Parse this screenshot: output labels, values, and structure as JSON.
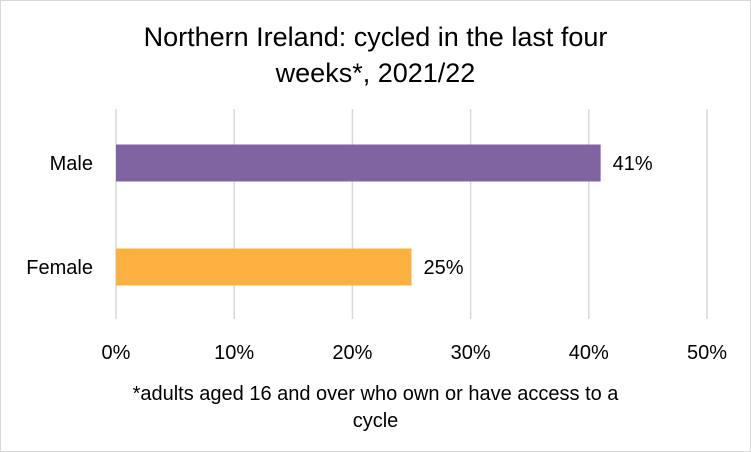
{
  "title_lines": [
    "Northern Ireland: cycled in the last four",
    "weeks*, 2021/22"
  ],
  "footnote_lines": [
    "*adults aged 16 and over who own or have access to a",
    "cycle"
  ],
  "chart_data": {
    "type": "bar",
    "orientation": "horizontal",
    "title": "Northern Ireland: cycled in the last four weeks*, 2021/22",
    "categories": [
      "Male",
      "Female"
    ],
    "values": [
      41,
      25
    ],
    "value_labels": [
      "41%",
      "25%"
    ],
    "colors": [
      "#8064a2",
      "#fbb040"
    ],
    "xlim": [
      0,
      50
    ],
    "x_ticks": [
      0,
      10,
      20,
      30,
      40,
      50
    ],
    "x_tick_labels": [
      "0%",
      "10%",
      "20%",
      "30%",
      "40%",
      "50%"
    ],
    "xlabel": "",
    "ylabel": "",
    "grid": true,
    "grid_color": "#d9d9d9",
    "legend": "none",
    "footnote": "*adults aged 16 and over who own or have access to a cycle"
  }
}
